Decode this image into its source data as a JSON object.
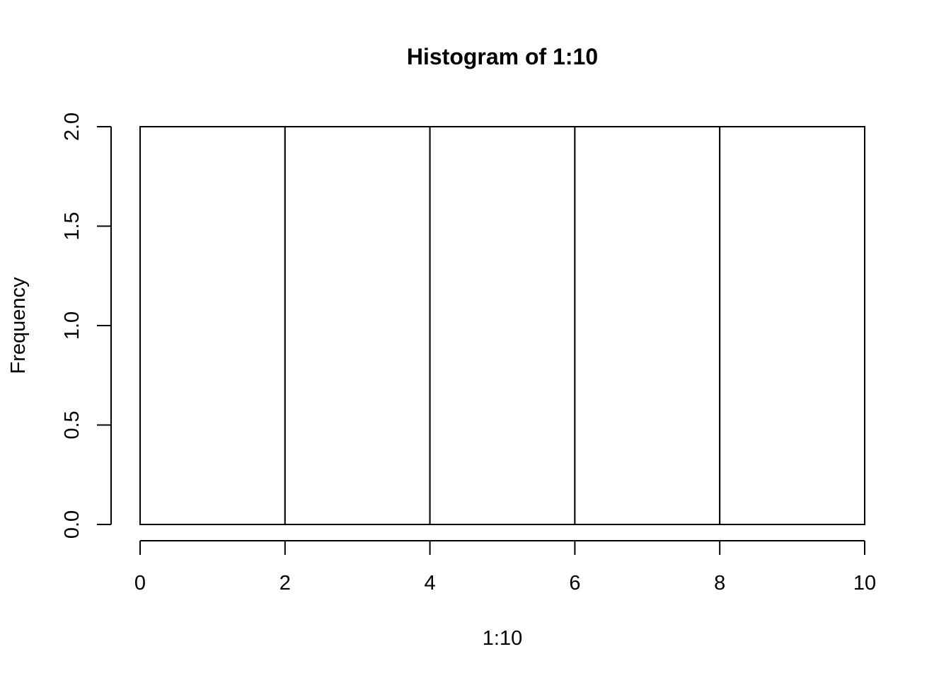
{
  "chart_data": {
    "type": "bar",
    "subtype": "histogram",
    "title": "Histogram of 1:10",
    "xlabel": "1:10",
    "ylabel": "Frequency",
    "bins": [
      {
        "start": 0,
        "end": 2,
        "count": 2
      },
      {
        "start": 2,
        "end": 4,
        "count": 2
      },
      {
        "start": 4,
        "end": 6,
        "count": 2
      },
      {
        "start": 6,
        "end": 8,
        "count": 2
      },
      {
        "start": 8,
        "end": 10,
        "count": 2
      }
    ],
    "xlim": [
      0,
      10
    ],
    "ylim": [
      0,
      2
    ],
    "x_ticks": [
      0,
      2,
      4,
      6,
      8,
      10
    ],
    "x_tick_labels": [
      "0",
      "2",
      "4",
      "6",
      "8",
      "10"
    ],
    "y_ticks": [
      0,
      0.5,
      1,
      1.5,
      2
    ],
    "y_tick_labels": [
      "0.0",
      "0.5",
      "1.0",
      "1.5",
      "2.0"
    ],
    "grid": false,
    "legend": "none",
    "bar_fill": "#ffffff",
    "bar_stroke": "#000000"
  }
}
